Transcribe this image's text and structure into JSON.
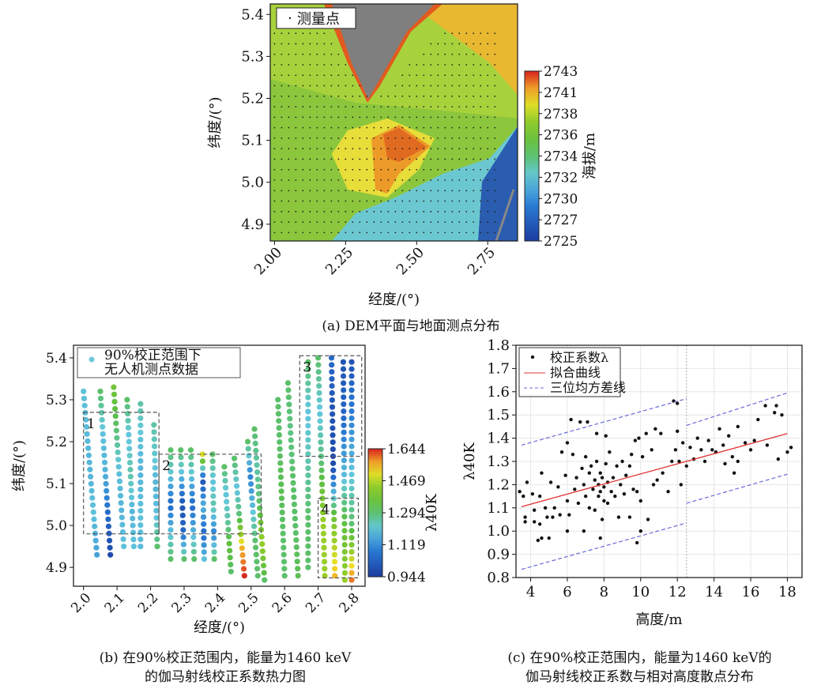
{
  "colors": {
    "fit": "#e03030",
    "band": "#6a6ad8",
    "grey": "#7f7f7f"
  },
  "chart_data": [
    {
      "id": "a",
      "type": "heatmap",
      "caption": "(a) DEM平面与地面测点分布",
      "xlabel": "经度/(°)",
      "ylabel": "纬度/(°)",
      "xlim": [
        1.985,
        2.855
      ],
      "ylim": [
        4.86,
        5.425
      ],
      "xticks": [
        "2.00",
        "2.25",
        "2.50",
        "2.75"
      ],
      "xtick_vals": [
        2.0,
        2.25,
        2.5,
        2.75
      ],
      "yticks": [
        "4.9",
        "5.0",
        "5.1",
        "5.2",
        "5.3",
        "5.4"
      ],
      "ytick_vals": [
        4.9,
        5.0,
        5.1,
        5.2,
        5.3,
        5.4
      ],
      "legend": "测量点",
      "colorbar": {
        "label": "海拔/m",
        "ticks": [
          "2725",
          "2727",
          "2730",
          "2732",
          "2734",
          "2736",
          "2738",
          "2741",
          "2743"
        ],
        "range": [
          2725,
          2743
        ]
      },
      "survey_grid": {
        "lon_start": 2.0,
        "lon_end": 2.78,
        "lat_start": 4.88,
        "lat_end": 5.37,
        "step": 0.025
      }
    },
    {
      "id": "b",
      "type": "scatter",
      "caption_lines": [
        "(b) 在90%校正范围内，能量为1460 keV",
        "的伽马射线校正系数热力图"
      ],
      "xlabel": "经度/(°)",
      "ylabel": "纬度/(°)",
      "xlim": [
        1.97,
        2.84
      ],
      "ylim": [
        4.855,
        5.43
      ],
      "xticks": [
        "2.0",
        "2.1",
        "2.2",
        "2.3",
        "2.4",
        "2.5",
        "2.6",
        "2.7",
        "2.8"
      ],
      "xtick_vals": [
        2.0,
        2.1,
        2.2,
        2.3,
        2.4,
        2.5,
        2.6,
        2.7,
        2.8
      ],
      "yticks": [
        "4.9",
        "5.0",
        "5.1",
        "5.2",
        "5.3",
        "5.4"
      ],
      "ytick_vals": [
        4.9,
        5.0,
        5.1,
        5.2,
        5.3,
        5.4
      ],
      "legend_lines": [
        "90%校正范围下",
        "无人机测点数据"
      ],
      "colorbar": {
        "label": "λ40K",
        "ticks": [
          "0.944",
          "1.119",
          "1.294",
          "1.469",
          "1.644"
        ],
        "range": [
          0.944,
          1.644
        ]
      },
      "boxes": [
        {
          "label": "1",
          "lon": [
            2.0,
            2.225
          ],
          "lat": [
            4.98,
            5.27
          ]
        },
        {
          "label": "2",
          "lon": [
            2.225,
            2.53
          ],
          "lat": [
            4.98,
            5.17
          ]
        },
        {
          "label": "3",
          "lon": [
            2.645,
            2.83
          ],
          "lat": [
            5.165,
            5.405
          ]
        },
        {
          "label": "4",
          "lon": [
            2.7,
            2.82
          ],
          "lat": [
            4.875,
            5.065
          ]
        }
      ],
      "flight_lines": [
        {
          "from": [
            2.0,
            5.32
          ],
          "to": [
            2.04,
            4.93
          ],
          "values": [
            1.2,
            1.19,
            1.18,
            1.2,
            1.15
          ]
        },
        {
          "from": [
            2.05,
            5.32
          ],
          "to": [
            2.08,
            4.93
          ],
          "values": [
            1.3,
            1.2,
            1.18,
            1.05,
            0.98
          ]
        },
        {
          "from": [
            2.09,
            5.33
          ],
          "to": [
            2.12,
            4.95
          ],
          "values": [
            1.38,
            1.3,
            1.2,
            1.18,
            1.2
          ]
        },
        {
          "from": [
            2.13,
            5.3
          ],
          "to": [
            2.15,
            4.95
          ],
          "values": [
            1.3,
            1.2,
            1.25,
            1.18,
            1.2
          ]
        },
        {
          "from": [
            2.17,
            5.29
          ],
          "to": [
            2.17,
            4.95
          ],
          "values": [
            1.25,
            1.2,
            1.18,
            1.2,
            1.19
          ]
        },
        {
          "from": [
            2.21,
            5.24
          ],
          "to": [
            2.22,
            4.95
          ],
          "values": [
            1.25,
            1.22,
            1.18,
            1.2,
            1.3
          ]
        },
        {
          "from": [
            2.26,
            5.18
          ],
          "to": [
            2.26,
            4.92
          ],
          "values": [
            1.3,
            1.2,
            1.05,
            1.2,
            1.3
          ]
        },
        {
          "from": [
            2.29,
            5.18
          ],
          "to": [
            2.3,
            4.92
          ],
          "values": [
            1.3,
            1.18,
            1.0,
            1.05,
            1.3
          ]
        },
        {
          "from": [
            2.32,
            5.18
          ],
          "to": [
            2.33,
            4.92
          ],
          "values": [
            1.3,
            1.2,
            1.05,
            1.18,
            1.3
          ]
        },
        {
          "from": [
            2.355,
            5.17
          ],
          "to": [
            2.36,
            4.92
          ],
          "values": [
            1.5,
            1.0,
            1.18,
            1.05,
            1.2
          ]
        },
        {
          "from": [
            2.385,
            5.17
          ],
          "to": [
            2.39,
            4.92
          ],
          "values": [
            1.3,
            1.2,
            1.25,
            1.1,
            1.3
          ]
        },
        {
          "from": [
            2.42,
            5.14
          ],
          "to": [
            2.44,
            4.89
          ],
          "values": [
            1.3,
            1.2,
            1.25,
            1.35,
            1.3
          ]
        },
        {
          "from": [
            2.45,
            5.16
          ],
          "to": [
            2.48,
            4.88
          ],
          "values": [
            1.3,
            1.2,
            1.3,
            1.55,
            1.64
          ]
        },
        {
          "from": [
            2.49,
            5.2
          ],
          "to": [
            2.52,
            4.88
          ],
          "values": [
            1.3,
            1.1,
            1.2,
            1.3,
            1.3
          ]
        },
        {
          "from": [
            2.51,
            5.23
          ],
          "to": [
            2.54,
            4.87
          ],
          "values": [
            1.3,
            1.25,
            1.3,
            1.45,
            1.3
          ]
        },
        {
          "from": [
            2.58,
            5.3
          ],
          "to": [
            2.6,
            4.88
          ],
          "values": [
            1.3,
            1.3,
            1.32,
            1.3,
            1.3
          ]
        },
        {
          "from": [
            2.61,
            5.34
          ],
          "to": [
            2.64,
            4.88
          ],
          "values": [
            1.3,
            1.28,
            1.3,
            1.3,
            1.32
          ]
        },
        {
          "from": [
            2.67,
            5.39
          ],
          "to": [
            2.67,
            4.9
          ],
          "values": [
            1.3,
            1.2,
            1.25,
            1.3,
            1.3
          ]
        },
        {
          "from": [
            2.7,
            5.4
          ],
          "to": [
            2.72,
            4.88
          ],
          "values": [
            1.3,
            1.2,
            1.3,
            1.45,
            1.45
          ]
        },
        {
          "from": [
            2.74,
            5.4
          ],
          "to": [
            2.75,
            4.88
          ],
          "values": [
            1.05,
            1.0,
            0.98,
            1.4,
            1.55
          ]
        },
        {
          "from": [
            2.775,
            5.39
          ],
          "to": [
            2.78,
            4.87
          ],
          "values": [
            1.0,
            1.05,
            1.18,
            1.35,
            1.45
          ]
        },
        {
          "from": [
            2.8,
            5.39
          ],
          "to": [
            2.8,
            4.87
          ],
          "values": [
            1.0,
            1.1,
            1.2,
            1.3,
            1.6
          ]
        }
      ]
    },
    {
      "id": "c",
      "type": "scatter",
      "caption_lines": [
        "(c) 在90%校正范围内，能量为1460 keV的",
        "伽马射线校正系数与相对高度散点分布"
      ],
      "xlabel": "高度/m",
      "ylabel": "λ40K",
      "xlim": [
        3.2,
        18.8
      ],
      "ylim": [
        0.8,
        1.8
      ],
      "xticks": [
        "4",
        "6",
        "8",
        "10",
        "12",
        "14",
        "16",
        "18"
      ],
      "xtick_vals": [
        4,
        6,
        8,
        10,
        12,
        14,
        16,
        18
      ],
      "yticks": [
        "0.8",
        "0.9",
        "1.0",
        "1.1",
        "1.2",
        "1.3",
        "1.4",
        "1.5",
        "1.6",
        "1.7",
        "1.8"
      ],
      "ytick_vals": [
        0.8,
        0.9,
        1.0,
        1.1,
        1.2,
        1.3,
        1.4,
        1.5,
        1.6,
        1.7,
        1.8
      ],
      "legend": [
        "校正系数λ",
        "拟合曲线",
        "三位均方差线"
      ],
      "fit_line": [
        [
          3.5,
          1.105
        ],
        [
          18,
          1.42
        ]
      ],
      "band_upper": [
        [
          [
            3.5,
            1.37
          ],
          [
            12.5,
            1.57
          ]
        ],
        [
          [
            12.5,
            1.455
          ],
          [
            18,
            1.595
          ]
        ]
      ],
      "band_lower": [
        [
          [
            3.5,
            0.835
          ],
          [
            12.5,
            1.035
          ]
        ],
        [
          [
            12.5,
            1.12
          ],
          [
            18,
            1.245
          ]
        ]
      ],
      "points": [
        [
          3.4,
          1.17
        ],
        [
          3.6,
          1.15
        ],
        [
          3.7,
          1.06
        ],
        [
          3.7,
          1.04
        ],
        [
          3.8,
          1.21
        ],
        [
          4.1,
          1.16
        ],
        [
          4.2,
          1.09
        ],
        [
          4.2,
          1.04
        ],
        [
          4.4,
          0.96
        ],
        [
          4.5,
          1.15
        ],
        [
          4.5,
          1.03
        ],
        [
          4.6,
          1.25
        ],
        [
          4.6,
          0.97
        ],
        [
          4.8,
          1.1
        ],
        [
          4.9,
          1.06
        ],
        [
          5.0,
          0.97
        ],
        [
          5.1,
          1.21
        ],
        [
          5.2,
          1.06
        ],
        [
          5.3,
          1.1
        ],
        [
          5.5,
          1.19
        ],
        [
          5.6,
          1.07
        ],
        [
          5.7,
          1.34
        ],
        [
          5.9,
          1.24
        ],
        [
          6.0,
          1.38
        ],
        [
          6.0,
          1.13
        ],
        [
          6.0,
          1.0
        ],
        [
          6.1,
          1.07
        ],
        [
          6.2,
          1.48
        ],
        [
          6.3,
          1.33
        ],
        [
          6.4,
          1.18
        ],
        [
          6.5,
          1.23
        ],
        [
          6.6,
          1.12
        ],
        [
          6.7,
          1.47
        ],
        [
          6.8,
          1.27
        ],
        [
          6.9,
          1.0
        ],
        [
          6.9,
          1.2
        ],
        [
          7.0,
          1.32
        ],
        [
          7.0,
          1.15
        ],
        [
          7.1,
          1.47
        ],
        [
          7.2,
          1.25
        ],
        [
          7.2,
          1.1
        ],
        [
          7.3,
          1.28
        ],
        [
          7.4,
          1.18
        ],
        [
          7.5,
          1.22
        ],
        [
          7.5,
          1.09
        ],
        [
          7.6,
          1.42
        ],
        [
          7.6,
          1.3
        ],
        [
          7.7,
          1.15
        ],
        [
          7.7,
          1.2
        ],
        [
          7.8,
          1.25
        ],
        [
          7.8,
          1.17
        ],
        [
          7.8,
          0.97
        ],
        [
          7.9,
          1.05
        ],
        [
          7.9,
          1.23
        ],
        [
          8.0,
          1.13
        ],
        [
          8.0,
          1.19
        ],
        [
          8.1,
          1.29
        ],
        [
          8.1,
          1.41
        ],
        [
          8.2,
          1.21
        ],
        [
          8.2,
          1.12
        ],
        [
          8.3,
          1.34
        ],
        [
          8.4,
          1.17
        ],
        [
          8.5,
          1.23
        ],
        [
          8.6,
          1.15
        ],
        [
          8.7,
          1.28
        ],
        [
          8.8,
          1.06
        ],
        [
          8.9,
          1.2
        ],
        [
          9.0,
          1.3
        ],
        [
          9.1,
          1.16
        ],
        [
          9.2,
          1.24
        ],
        [
          9.4,
          1.28
        ],
        [
          9.4,
          1.06
        ],
        [
          9.5,
          1.33
        ],
        [
          9.6,
          1.18
        ],
        [
          9.7,
          1.39
        ],
        [
          9.8,
          0.95
        ],
        [
          9.8,
          1.17
        ],
        [
          9.9,
          1.4
        ],
        [
          10.0,
          1.0
        ],
        [
          10.0,
          1.13
        ],
        [
          10.1,
          1.32
        ],
        [
          10.3,
          1.42
        ],
        [
          10.4,
          1.05
        ],
        [
          10.6,
          1.35
        ],
        [
          10.7,
          1.2
        ],
        [
          10.8,
          1.44
        ],
        [
          10.9,
          1.22
        ],
        [
          11.1,
          1.42
        ],
        [
          11.2,
          1.25
        ],
        [
          11.5,
          1.17
        ],
        [
          11.7,
          1.3
        ],
        [
          11.8,
          1.56
        ],
        [
          11.9,
          1.35
        ],
        [
          12.0,
          1.55
        ],
        [
          12.0,
          1.43
        ],
        [
          12.1,
          1.3
        ],
        [
          12.2,
          1.2
        ],
        [
          12.3,
          1.38
        ],
        [
          12.5,
          1.28
        ],
        [
          12.7,
          1.36
        ],
        [
          12.9,
          1.31
        ],
        [
          13.1,
          1.4
        ],
        [
          13.3,
          1.35
        ],
        [
          13.5,
          1.3
        ],
        [
          13.7,
          1.39
        ],
        [
          13.9,
          1.35
        ],
        [
          14.1,
          1.34
        ],
        [
          14.3,
          1.44
        ],
        [
          14.5,
          1.37
        ],
        [
          14.6,
          1.29
        ],
        [
          14.8,
          1.41
        ],
        [
          15.0,
          1.32
        ],
        [
          15.1,
          1.25
        ],
        [
          15.3,
          1.45
        ],
        [
          15.3,
          1.3
        ],
        [
          15.7,
          1.38
        ],
        [
          16.0,
          1.35
        ],
        [
          16.2,
          1.39
        ],
        [
          16.4,
          1.48
        ],
        [
          16.8,
          1.54
        ],
        [
          16.9,
          1.37
        ],
        [
          17.3,
          1.51
        ],
        [
          17.4,
          1.54
        ],
        [
          17.5,
          1.31
        ],
        [
          17.7,
          1.5
        ],
        [
          18.0,
          1.34
        ],
        [
          18.2,
          1.36
        ]
      ]
    }
  ]
}
